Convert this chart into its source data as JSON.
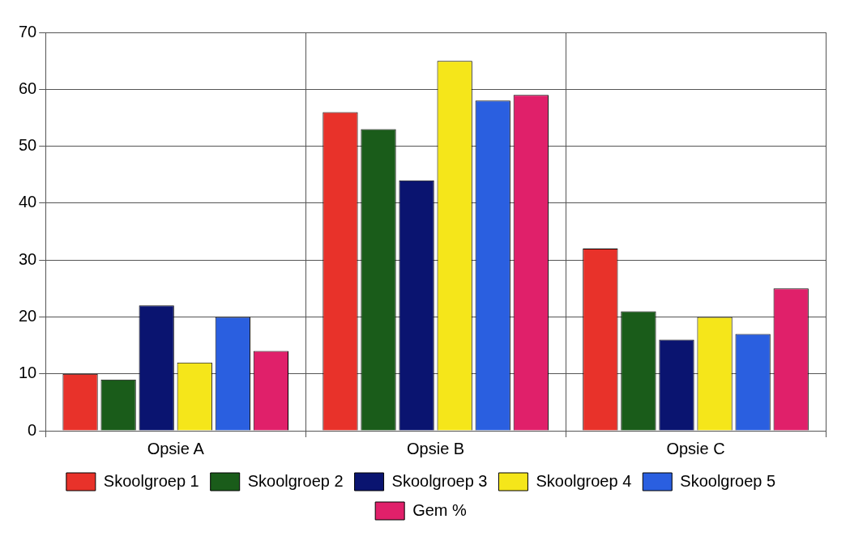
{
  "chart_data": {
    "type": "bar",
    "categories": [
      "Opsie A",
      "Opsie B",
      "Opsie C"
    ],
    "series": [
      {
        "name": "Skoolgroep 1",
        "color": "#e8322a",
        "values": [
          10,
          56,
          32
        ]
      },
      {
        "name": "Skoolgroep 2",
        "color": "#1a5c1a",
        "values": [
          9,
          53,
          21
        ]
      },
      {
        "name": "Skoolgroep 3",
        "color": "#0a1470",
        "values": [
          22,
          44,
          16
        ]
      },
      {
        "name": "Skoolgroep 4",
        "color": "#f5e61a",
        "values": [
          12,
          65,
          20
        ]
      },
      {
        "name": "Skoolgroep 5",
        "color": "#2a5fe0",
        "values": [
          20,
          58,
          17
        ]
      },
      {
        "name": "Gem %",
        "color": "#e0206a",
        "values": [
          14,
          59,
          25
        ]
      }
    ],
    "ylim": [
      0,
      70
    ],
    "yticks": [
      0,
      10,
      20,
      30,
      40,
      50,
      60,
      70
    ],
    "grid": true,
    "legend": "bottom"
  }
}
